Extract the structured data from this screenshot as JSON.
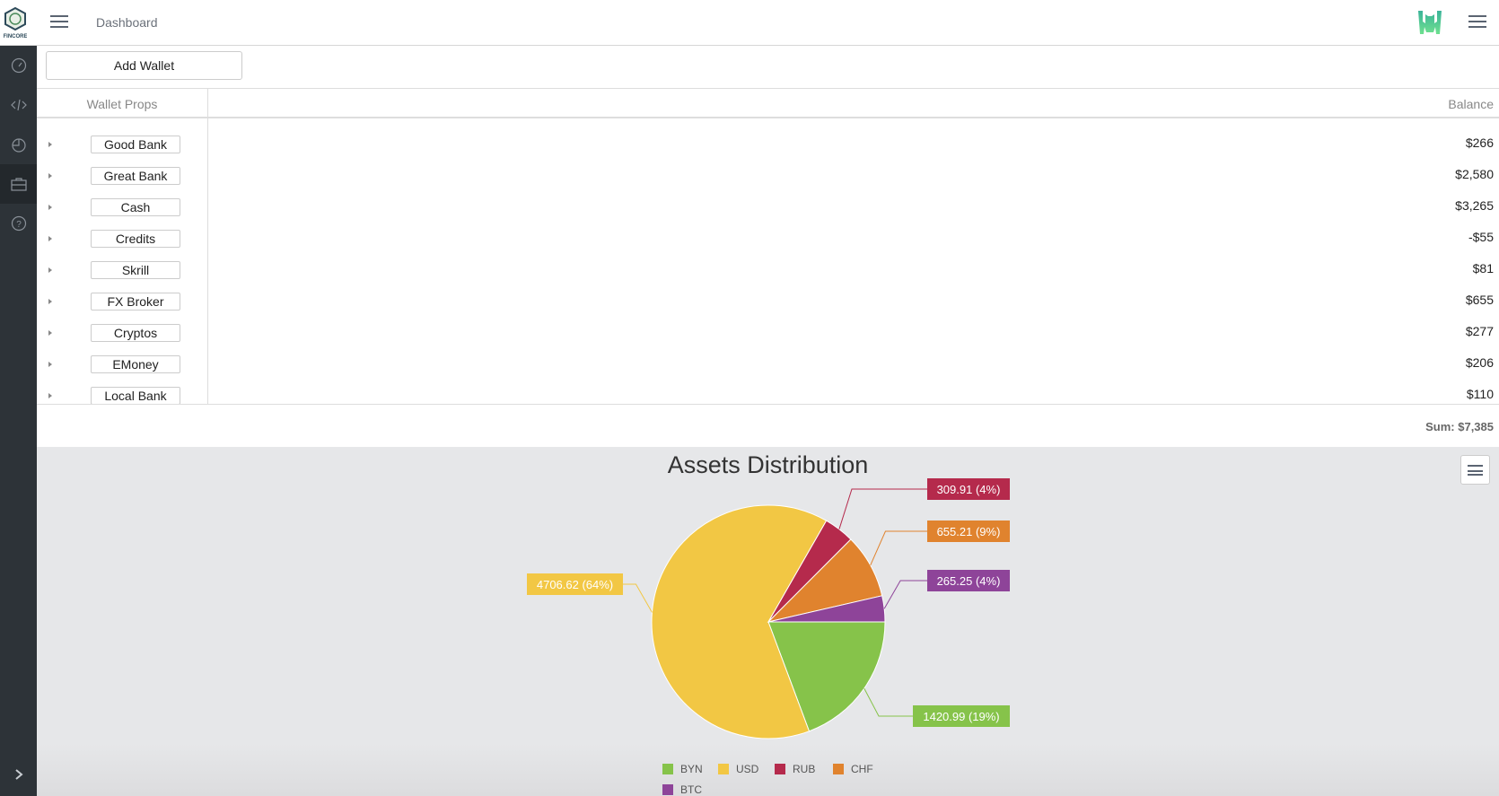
{
  "header": {
    "title": "Dashboard",
    "logo_text": "FINCORE"
  },
  "toolbar": {
    "add_wallet": "Add Wallet"
  },
  "table": {
    "col_props": "Wallet Props",
    "col_balance": "Balance",
    "rows": [
      {
        "name": "Good Bank",
        "balance": "$266"
      },
      {
        "name": "Great Bank",
        "balance": "$2,580"
      },
      {
        "name": "Cash",
        "balance": "$3,265"
      },
      {
        "name": "Credits",
        "balance": "-$55"
      },
      {
        "name": "Skrill",
        "balance": "$81"
      },
      {
        "name": "FX Broker",
        "balance": "$655"
      },
      {
        "name": "Cryptos",
        "balance": "$277"
      },
      {
        "name": "EMoney",
        "balance": "$206"
      },
      {
        "name": "Local Bank",
        "balance": "$110"
      }
    ],
    "sum": "Sum: $7,385"
  },
  "chart_data": {
    "type": "pie",
    "title": "Assets Distribution",
    "series": [
      {
        "name": "BYN",
        "value": 1420.99,
        "label": "1420.99 (19%)",
        "color": "#86c34a"
      },
      {
        "name": "USD",
        "value": 4706.62,
        "label": "4706.62 (64%)",
        "color": "#f2c744"
      },
      {
        "name": "RUB",
        "value": 309.91,
        "label": "309.91 (4%)",
        "color": "#b52a4c"
      },
      {
        "name": "CHF",
        "value": 655.21,
        "label": "655.21 (9%)",
        "color": "#e0832e"
      },
      {
        "name": "BTC",
        "value": 265.25,
        "label": "265.25 (4%)",
        "color": "#8e4499"
      }
    ],
    "legend_position": "bottom"
  }
}
